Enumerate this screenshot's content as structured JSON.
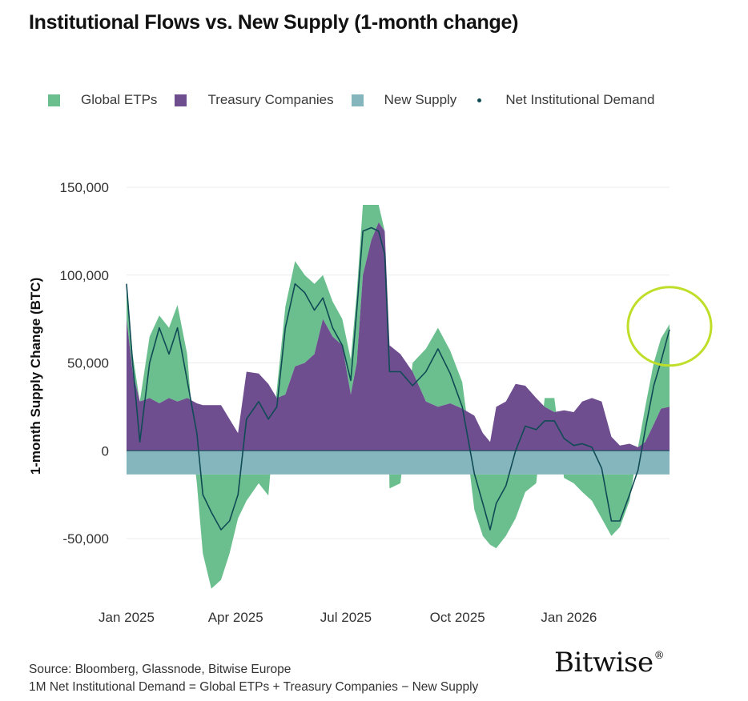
{
  "title": "Institutional Flows vs. New Supply (1-month change)",
  "legend": [
    {
      "label": "Global ETPs",
      "color": "#6bbf8e",
      "shape": "square"
    },
    {
      "label": "Treasury Companies",
      "color": "#6e4e8f",
      "shape": "square"
    },
    {
      "label": "New Supply",
      "color": "#86b6bd",
      "shape": "square"
    },
    {
      "label": "Net Institutional Demand",
      "color": "#0f4a55",
      "shape": "dot"
    }
  ],
  "chart_data": {
    "type": "area",
    "ylabel": "1-month Supply Change (BTC)",
    "xlabel": "",
    "ylim": [
      -75000,
      155000
    ],
    "xlim": [
      "2025-01-01",
      "2026-03-25"
    ],
    "y_ticks": [
      150000,
      100000,
      50000,
      0,
      -50000
    ],
    "y_tick_labels": [
      "150,000",
      "100,000",
      "50,000",
      "0",
      "-50,000"
    ],
    "x_ticks": [
      "2025-01-01",
      "2025-04-01",
      "2025-07-01",
      "2025-10-01",
      "2026-01-01"
    ],
    "x_tick_labels": [
      "Jan 2025",
      "Apr 2025",
      "Jul 2025",
      "Oct 2025",
      "Jan 2026"
    ],
    "grid": "horizontal",
    "series": [
      {
        "name": "Treasury Companies",
        "color": "#6e4e8f",
        "points": [
          [
            "2025-01-01",
            75000
          ],
          [
            "2025-01-06",
            45000
          ],
          [
            "2025-01-12",
            28000
          ],
          [
            "2025-01-20",
            30000
          ],
          [
            "2025-01-28",
            27000
          ],
          [
            "2025-02-05",
            30000
          ],
          [
            "2025-02-12",
            28000
          ],
          [
            "2025-02-20",
            30000
          ],
          [
            "2025-02-28",
            27000
          ],
          [
            "2025-03-05",
            26000
          ],
          [
            "2025-03-12",
            26000
          ],
          [
            "2025-03-20",
            26000
          ],
          [
            "2025-03-27",
            18000
          ],
          [
            "2025-04-03",
            10000
          ],
          [
            "2025-04-10",
            45000
          ],
          [
            "2025-04-20",
            44000
          ],
          [
            "2025-04-28",
            38000
          ],
          [
            "2025-05-05",
            30000
          ],
          [
            "2025-05-12",
            32000
          ],
          [
            "2025-05-20",
            48000
          ],
          [
            "2025-05-28",
            50000
          ],
          [
            "2025-06-05",
            55000
          ],
          [
            "2025-06-12",
            75000
          ],
          [
            "2025-06-20",
            65000
          ],
          [
            "2025-06-28",
            60000
          ],
          [
            "2025-07-05",
            32000
          ],
          [
            "2025-07-10",
            50000
          ],
          [
            "2025-07-15",
            100000
          ],
          [
            "2025-07-22",
            120000
          ],
          [
            "2025-07-28",
            130000
          ],
          [
            "2025-08-02",
            125000
          ],
          [
            "2025-08-06",
            60000
          ],
          [
            "2025-08-15",
            55000
          ],
          [
            "2025-08-25",
            45000
          ],
          [
            "2025-09-05",
            28000
          ],
          [
            "2025-09-15",
            25000
          ],
          [
            "2025-09-25",
            27000
          ],
          [
            "2025-10-05",
            24000
          ],
          [
            "2025-10-15",
            20000
          ],
          [
            "2025-10-22",
            10000
          ],
          [
            "2025-10-28",
            5000
          ],
          [
            "2025-11-02",
            25000
          ],
          [
            "2025-11-10",
            28000
          ],
          [
            "2025-11-18",
            38000
          ],
          [
            "2025-11-26",
            37000
          ],
          [
            "2025-12-05",
            30000
          ],
          [
            "2025-12-12",
            25000
          ],
          [
            "2025-12-20",
            22000
          ],
          [
            "2025-12-28",
            23000
          ],
          [
            "2026-01-05",
            22000
          ],
          [
            "2026-01-12",
            28000
          ],
          [
            "2026-01-20",
            30000
          ],
          [
            "2026-01-28",
            28000
          ],
          [
            "2026-02-05",
            8000
          ],
          [
            "2026-02-12",
            3000
          ],
          [
            "2026-02-20",
            4000
          ],
          [
            "2026-02-27",
            2000
          ],
          [
            "2026-03-05",
            5000
          ],
          [
            "2026-03-12",
            15000
          ],
          [
            "2026-03-18",
            24000
          ],
          [
            "2026-03-25",
            25000
          ]
        ]
      },
      {
        "name": "Global ETPs",
        "color": "#6bbf8e",
        "points": [
          [
            "2025-01-01",
            20000
          ],
          [
            "2025-01-06",
            10000
          ],
          [
            "2025-01-12",
            0
          ],
          [
            "2025-01-20",
            35000
          ],
          [
            "2025-01-28",
            50000
          ],
          [
            "2025-02-05",
            40000
          ],
          [
            "2025-02-12",
            55000
          ],
          [
            "2025-02-20",
            25000
          ],
          [
            "2025-02-28",
            -5000
          ],
          [
            "2025-03-05",
            -45000
          ],
          [
            "2025-03-12",
            -65000
          ],
          [
            "2025-03-20",
            -60000
          ],
          [
            "2025-03-27",
            -45000
          ],
          [
            "2025-04-03",
            -25000
          ],
          [
            "2025-04-10",
            -15000
          ],
          [
            "2025-04-20",
            -5000
          ],
          [
            "2025-04-28",
            -12000
          ],
          [
            "2025-05-05",
            5000
          ],
          [
            "2025-05-12",
            50000
          ],
          [
            "2025-05-20",
            60000
          ],
          [
            "2025-05-28",
            50000
          ],
          [
            "2025-06-05",
            40000
          ],
          [
            "2025-06-12",
            25000
          ],
          [
            "2025-06-20",
            20000
          ],
          [
            "2025-06-28",
            15000
          ],
          [
            "2025-07-05",
            20000
          ],
          [
            "2025-07-10",
            40000
          ],
          [
            "2025-07-15",
            40000
          ],
          [
            "2025-07-22",
            20000
          ],
          [
            "2025-07-28",
            10000
          ],
          [
            "2025-08-02",
            0
          ],
          [
            "2025-08-06",
            -8000
          ],
          [
            "2025-08-15",
            -5000
          ],
          [
            "2025-08-25",
            5000
          ],
          [
            "2025-09-05",
            30000
          ],
          [
            "2025-09-15",
            45000
          ],
          [
            "2025-09-25",
            30000
          ],
          [
            "2025-10-05",
            15000
          ],
          [
            "2025-10-15",
            -20000
          ],
          [
            "2025-10-22",
            -35000
          ],
          [
            "2025-10-28",
            -40000
          ],
          [
            "2025-11-02",
            -42000
          ],
          [
            "2025-11-10",
            -35000
          ],
          [
            "2025-11-18",
            -25000
          ],
          [
            "2025-11-26",
            -10000
          ],
          [
            "2025-12-05",
            -5000
          ],
          [
            "2025-12-12",
            5000
          ],
          [
            "2025-12-20",
            8000
          ],
          [
            "2025-12-28",
            -2000
          ],
          [
            "2026-01-05",
            -5000
          ],
          [
            "2026-01-12",
            -10000
          ],
          [
            "2026-01-20",
            -15000
          ],
          [
            "2026-01-28",
            -25000
          ],
          [
            "2026-02-05",
            -35000
          ],
          [
            "2026-02-12",
            -30000
          ],
          [
            "2026-02-20",
            -15000
          ],
          [
            "2026-02-27",
            0
          ],
          [
            "2026-03-05",
            20000
          ],
          [
            "2026-03-12",
            35000
          ],
          [
            "2026-03-18",
            40000
          ],
          [
            "2026-03-25",
            47000
          ]
        ]
      },
      {
        "name": "New Supply",
        "color": "#86b6bd",
        "points": [
          [
            "2025-01-01",
            -13500
          ],
          [
            "2026-03-25",
            -13000
          ]
        ]
      },
      {
        "name": "Net Institutional Demand",
        "color": "#0f4a55",
        "points": [
          [
            "2025-01-01",
            95000
          ],
          [
            "2025-01-06",
            50000
          ],
          [
            "2025-01-12",
            5000
          ],
          [
            "2025-01-20",
            50000
          ],
          [
            "2025-01-28",
            70000
          ],
          [
            "2025-02-05",
            55000
          ],
          [
            "2025-02-12",
            70000
          ],
          [
            "2025-02-20",
            40000
          ],
          [
            "2025-02-28",
            10000
          ],
          [
            "2025-03-05",
            -25000
          ],
          [
            "2025-03-12",
            -35000
          ],
          [
            "2025-03-20",
            -45000
          ],
          [
            "2025-03-27",
            -40000
          ],
          [
            "2025-04-03",
            -25000
          ],
          [
            "2025-04-10",
            18000
          ],
          [
            "2025-04-20",
            28000
          ],
          [
            "2025-04-28",
            18000
          ],
          [
            "2025-05-05",
            25000
          ],
          [
            "2025-05-12",
            70000
          ],
          [
            "2025-05-20",
            95000
          ],
          [
            "2025-05-28",
            90000
          ],
          [
            "2025-06-05",
            80000
          ],
          [
            "2025-06-12",
            87000
          ],
          [
            "2025-06-20",
            70000
          ],
          [
            "2025-06-28",
            60000
          ],
          [
            "2025-07-05",
            40000
          ],
          [
            "2025-07-10",
            80000
          ],
          [
            "2025-07-15",
            125000
          ],
          [
            "2025-07-22",
            127000
          ],
          [
            "2025-07-28",
            125000
          ],
          [
            "2025-08-02",
            112000
          ],
          [
            "2025-08-06",
            45000
          ],
          [
            "2025-08-15",
            45000
          ],
          [
            "2025-08-25",
            37000
          ],
          [
            "2025-09-05",
            45000
          ],
          [
            "2025-09-15",
            58000
          ],
          [
            "2025-09-25",
            44000
          ],
          [
            "2025-10-05",
            25000
          ],
          [
            "2025-10-15",
            -13000
          ],
          [
            "2025-10-22",
            -30000
          ],
          [
            "2025-10-28",
            -45000
          ],
          [
            "2025-11-02",
            -30000
          ],
          [
            "2025-11-10",
            -20000
          ],
          [
            "2025-11-18",
            0
          ],
          [
            "2025-11-26",
            14000
          ],
          [
            "2025-12-05",
            12000
          ],
          [
            "2025-12-12",
            17000
          ],
          [
            "2025-12-20",
            17000
          ],
          [
            "2025-12-28",
            7000
          ],
          [
            "2026-01-05",
            3000
          ],
          [
            "2026-01-12",
            4000
          ],
          [
            "2026-01-20",
            2000
          ],
          [
            "2026-01-28",
            -10000
          ],
          [
            "2026-02-05",
            -40000
          ],
          [
            "2026-02-12",
            -40000
          ],
          [
            "2026-02-20",
            -25000
          ],
          [
            "2026-02-27",
            -11000
          ],
          [
            "2026-03-05",
            12000
          ],
          [
            "2026-03-12",
            37000
          ],
          [
            "2026-03-18",
            51000
          ],
          [
            "2026-03-25",
            69000
          ]
        ]
      }
    ],
    "annotation": {
      "shape": "circle",
      "color": "#bfde2a",
      "target_date": "2026-03-25",
      "target_value": 69000
    }
  },
  "footer": {
    "source": "Source: Bloomberg, Glassnode, Bitwise Europe",
    "note": "1M Net Institutional Demand = Global ETPs + Treasury Companies − New Supply"
  },
  "logo": {
    "text": "Bitwise",
    "mark": "®"
  }
}
